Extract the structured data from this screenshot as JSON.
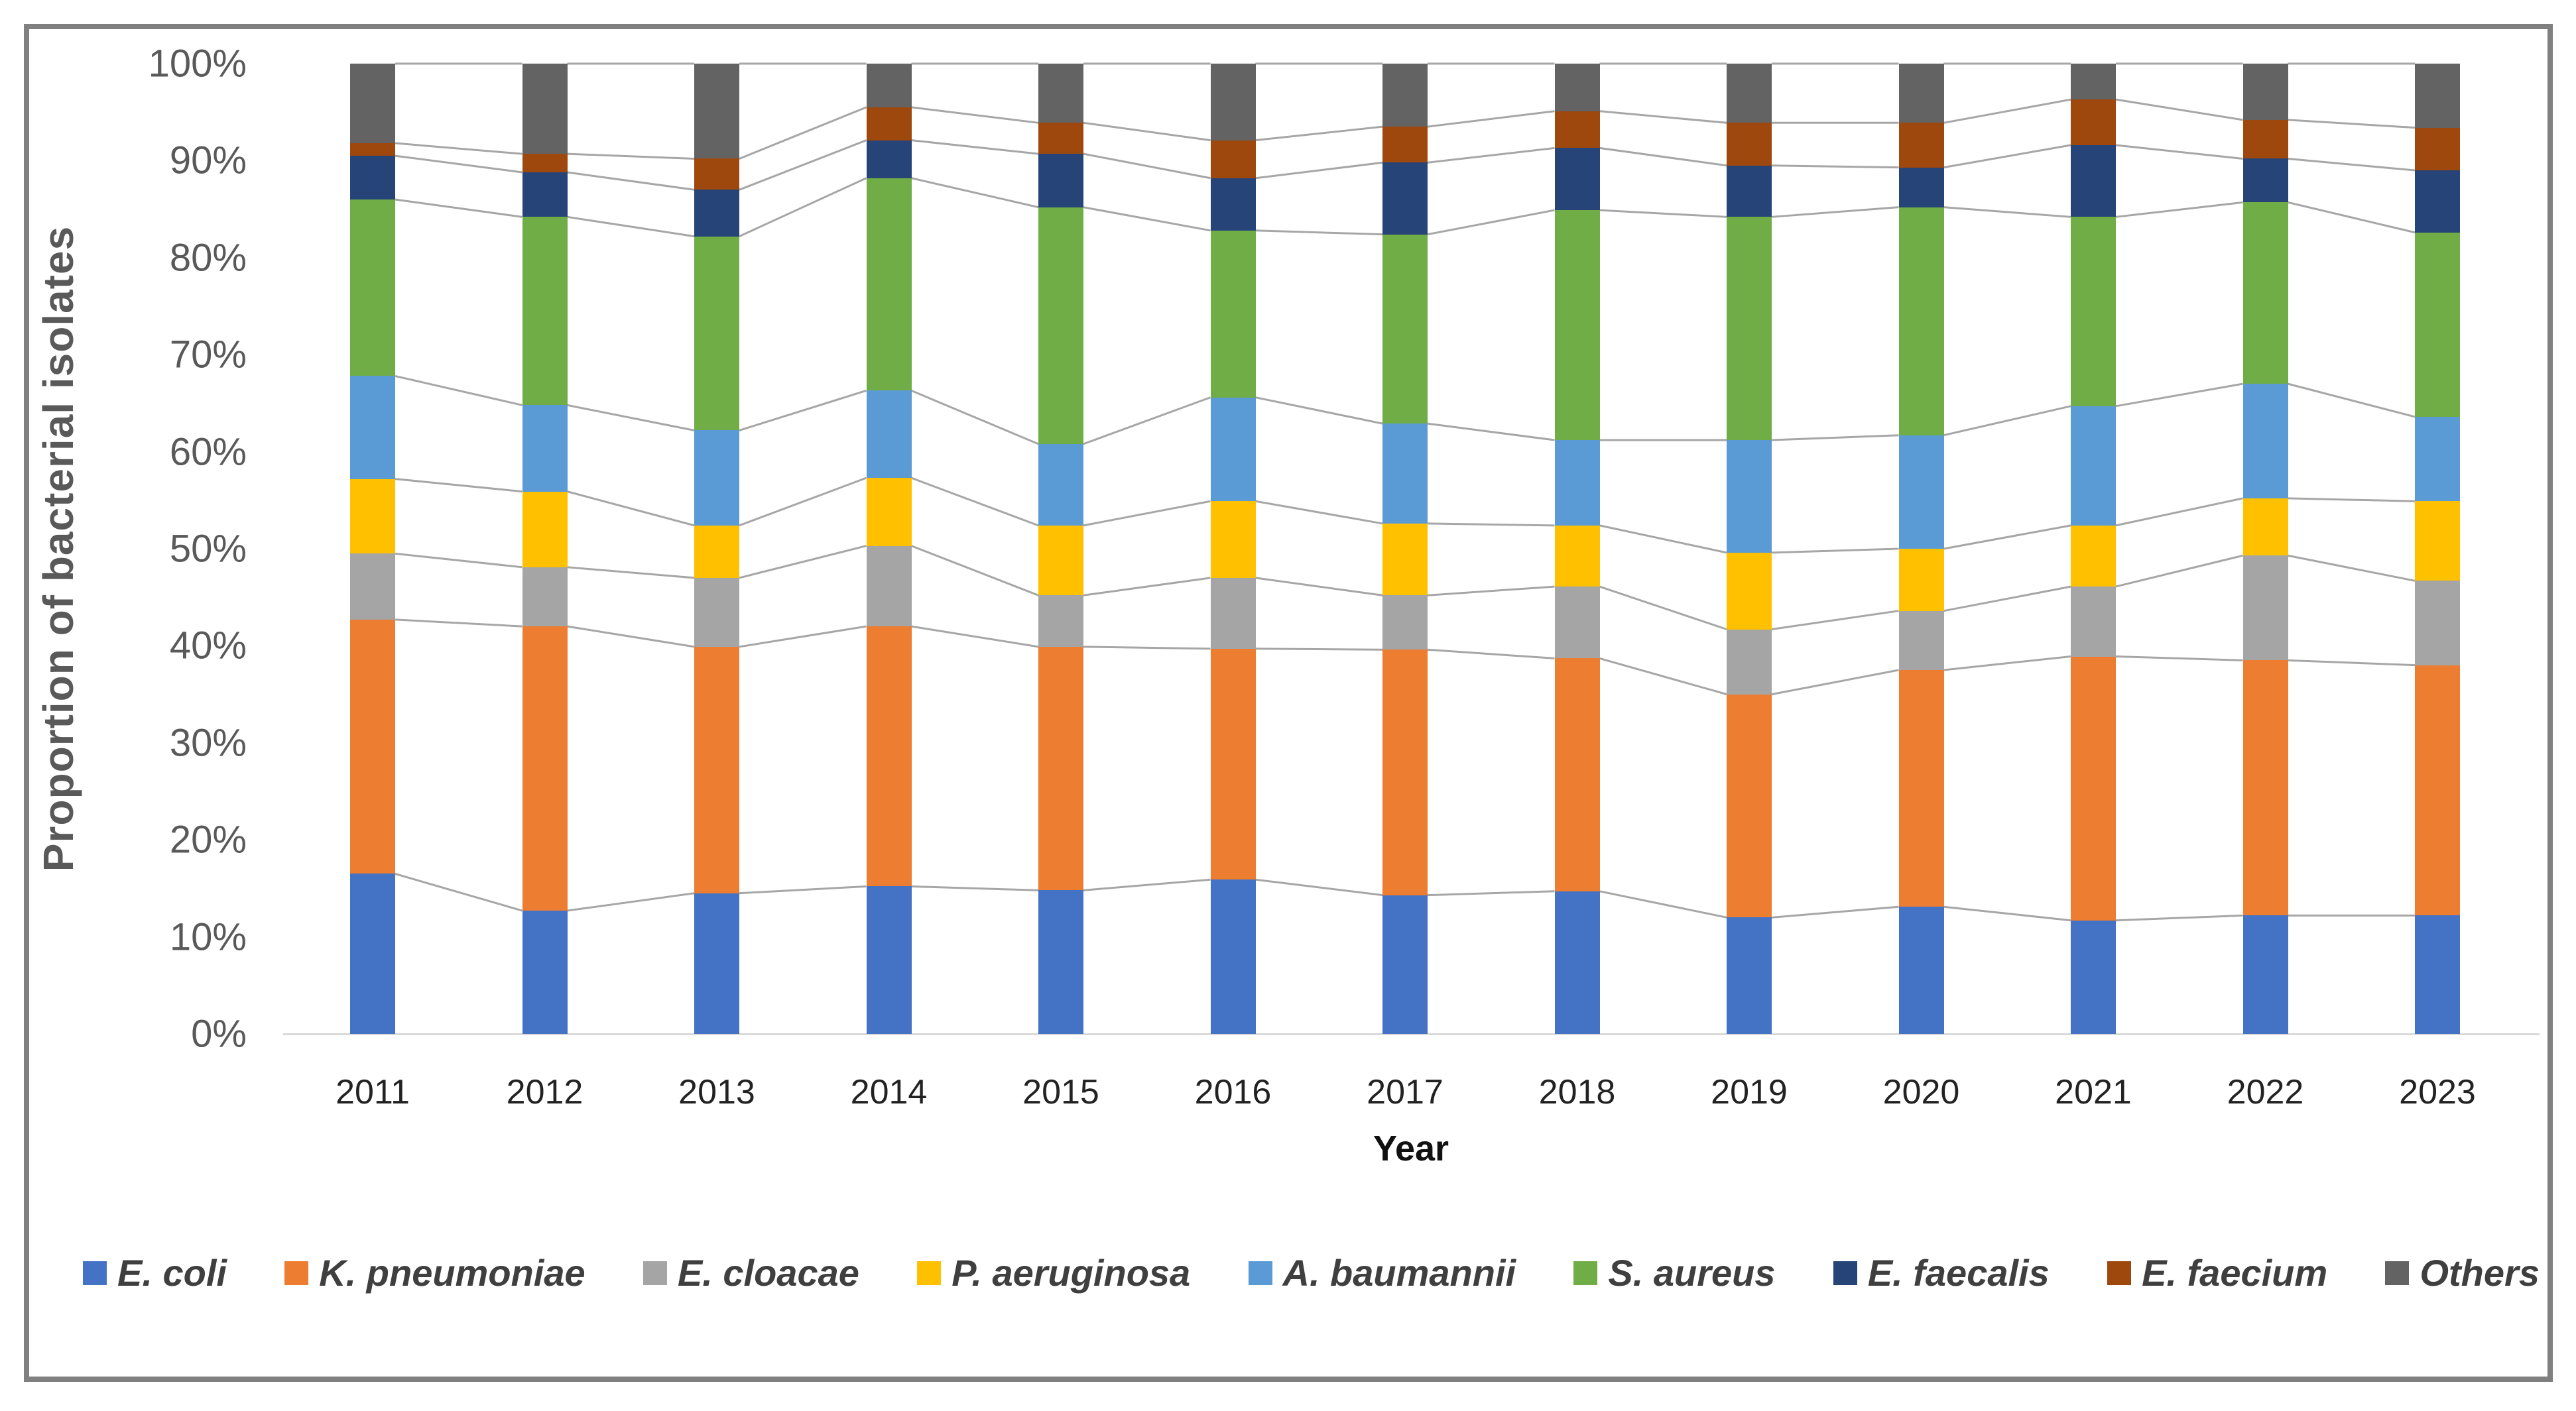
{
  "figure": {
    "y_axis_title": "Proportion of bacterial isolates",
    "x_axis_title": "Year",
    "y_tick_labels": [
      "0%",
      "10%",
      "20%",
      "30%",
      "40%",
      "50%",
      "60%",
      "70%",
      "80%",
      "90%",
      "100%"
    ]
  },
  "chart_data": {
    "type": "bar",
    "stacked": true,
    "stacked_total_percent": 100,
    "title": "",
    "xlabel": "Year",
    "ylabel": "Proportion of bacterial isolates",
    "ylim": [
      0,
      100
    ],
    "y_tick_format": "percent",
    "grid": false,
    "legend_position": "bottom",
    "connector_lines": true,
    "categories": [
      "2011",
      "2012",
      "2013",
      "2014",
      "2015",
      "2016",
      "2017",
      "2018",
      "2019",
      "2020",
      "2021",
      "2022",
      "2023"
    ],
    "series": [
      {
        "name": "E. coli",
        "color": "#4472C4",
        "values": [
          16.5,
          12.7,
          14.5,
          15.2,
          14.8,
          15.9,
          14.3,
          14.7,
          12.0,
          13.1,
          11.7,
          12.2,
          12.2
        ]
      },
      {
        "name": "K. pneumoniae",
        "color": "#ED7D31",
        "values": [
          26.2,
          29.3,
          25.4,
          26.8,
          25.1,
          23.8,
          25.3,
          24.0,
          23.0,
          24.4,
          27.2,
          26.3,
          25.8
        ]
      },
      {
        "name": "E. cloacae",
        "color": "#A5A5A5",
        "values": [
          6.8,
          6.1,
          7.1,
          8.3,
          5.3,
          7.3,
          5.6,
          7.4,
          6.7,
          6.1,
          7.2,
          10.8,
          8.7
        ]
      },
      {
        "name": "P. aeruginosa",
        "color": "#FFC000",
        "values": [
          7.7,
          7.8,
          5.4,
          7.0,
          7.2,
          7.9,
          7.4,
          6.3,
          7.9,
          6.4,
          6.3,
          5.9,
          8.2
        ]
      },
      {
        "name": "A. baumannii",
        "color": "#5B9BD5",
        "values": [
          10.6,
          8.9,
          9.8,
          9.0,
          8.4,
          10.7,
          10.3,
          8.8,
          11.6,
          11.7,
          12.3,
          11.8,
          8.7
        ]
      },
      {
        "name": "S. aureus",
        "color": "#70AD47",
        "values": [
          18.2,
          19.4,
          20.0,
          21.9,
          24.4,
          17.2,
          19.5,
          23.7,
          23.0,
          23.5,
          19.5,
          18.7,
          19.0
        ]
      },
      {
        "name": "E. faecalis",
        "color": "#264478",
        "values": [
          4.5,
          4.6,
          4.8,
          3.9,
          5.5,
          5.4,
          7.4,
          6.4,
          5.3,
          4.1,
          7.4,
          4.5,
          6.4
        ]
      },
      {
        "name": "E. faecium",
        "color": "#9E480E",
        "values": [
          1.3,
          1.9,
          3.2,
          3.4,
          3.2,
          3.9,
          3.7,
          3.8,
          4.4,
          4.6,
          4.7,
          4.0,
          4.4
        ]
      },
      {
        "name": "Others",
        "color": "#636363",
        "values": [
          8.2,
          9.3,
          9.8,
          4.5,
          6.1,
          7.9,
          6.5,
          4.9,
          6.1,
          6.1,
          3.7,
          5.8,
          6.6
        ]
      }
    ]
  },
  "style_colors": {
    "frame_border": "#808080",
    "axis_line": "#D9D9D9",
    "connector_line": "#A6A6A6",
    "tick_label": "#595959",
    "category_label": "#222222",
    "legend_text": "#3F3F3F"
  }
}
